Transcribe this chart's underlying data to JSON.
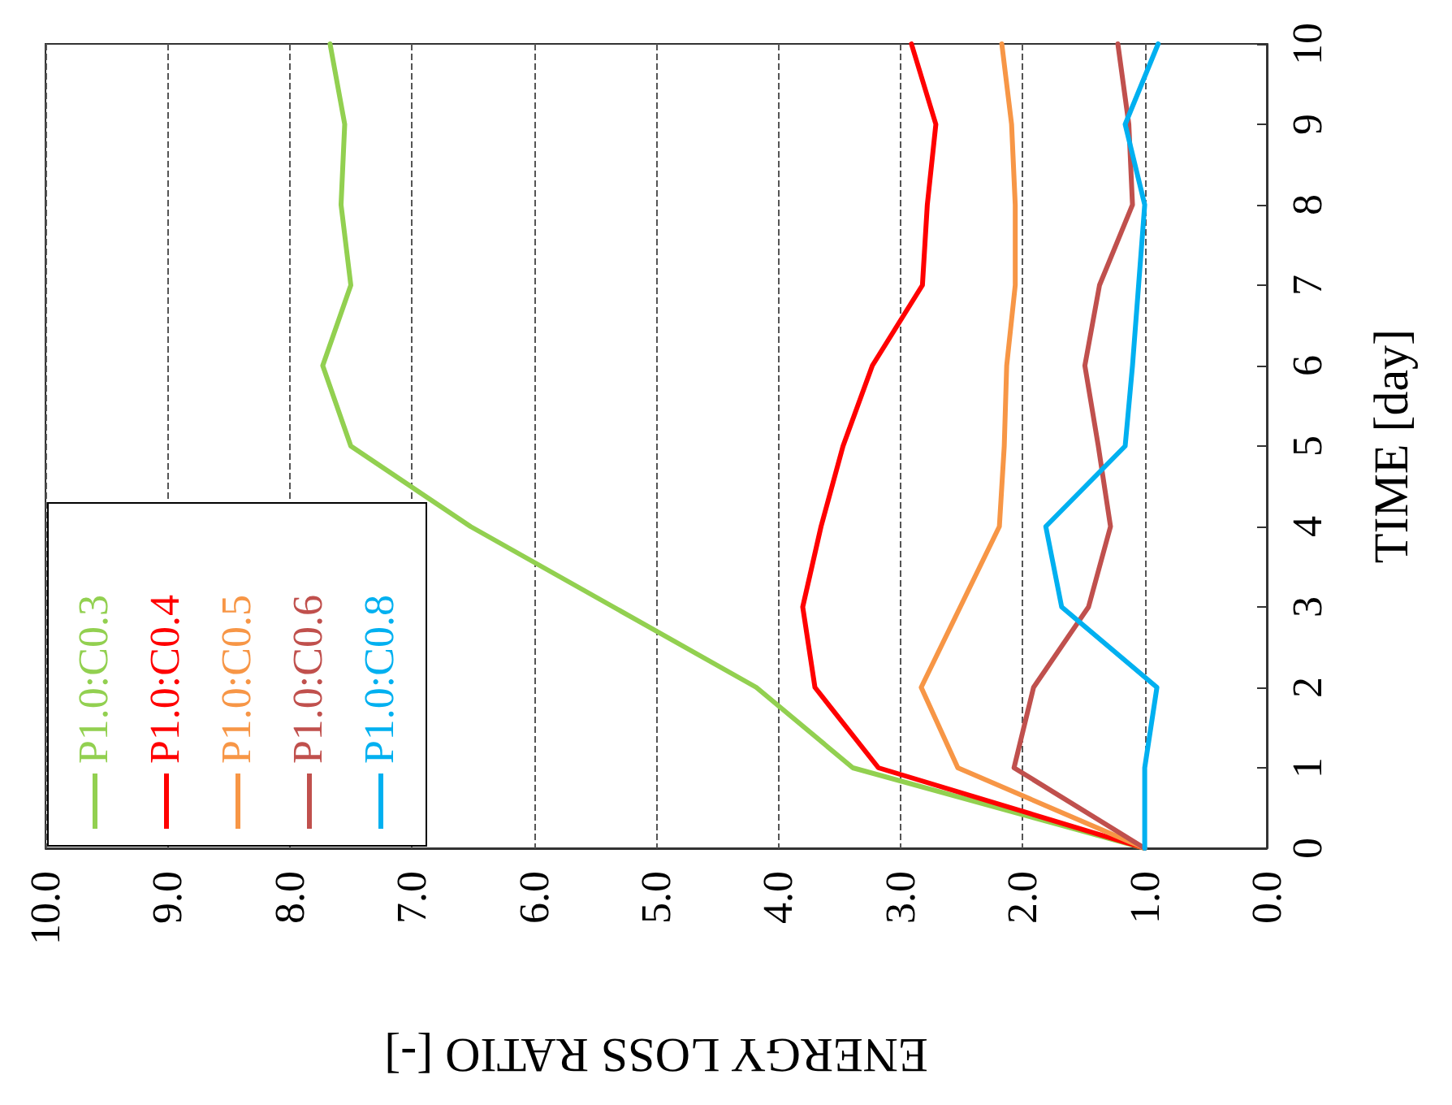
{
  "chart_data": {
    "type": "line",
    "xlabel": "ENERGY LOSS RATIO [-]",
    "ylabel": "TIME [day]",
    "xlim": [
      10,
      0
    ],
    "xticks": [
      {
        "value": 0,
        "label": "0.0"
      },
      {
        "value": 1,
        "label": "1.0"
      },
      {
        "value": 2,
        "label": "2.0"
      },
      {
        "value": 3,
        "label": "3.0"
      },
      {
        "value": 4,
        "label": "4.0"
      },
      {
        "value": 5,
        "label": "5.0"
      },
      {
        "value": 6,
        "label": "6.0"
      },
      {
        "value": 7,
        "label": "7.0"
      },
      {
        "value": 8,
        "label": "8.0"
      },
      {
        "value": 9,
        "label": "9.0"
      },
      {
        "value": 10,
        "label": "10.0"
      }
    ],
    "ylim": [
      0,
      10
    ],
    "yticks": [
      0,
      1,
      2,
      3,
      4,
      5,
      6,
      7,
      8,
      9,
      10
    ],
    "grid": "x",
    "legend": "bottom left",
    "marker": "none",
    "line_style": "solid",
    "series": [
      {
        "name": "P1.0:C0.3",
        "color": "#92d050",
        "x": [
          1.0,
          3.39,
          4.18,
          5.35,
          6.52,
          7.5,
          7.73,
          7.5,
          7.58,
          7.55,
          7.67
        ],
        "values": [
          0,
          1,
          2,
          3,
          4,
          5,
          6,
          7,
          8,
          9,
          10
        ]
      },
      {
        "name": "P1.0:C0.4",
        "color": "#ff0000",
        "x": [
          1.0,
          3.18,
          3.7,
          3.8,
          3.65,
          3.47,
          3.23,
          2.82,
          2.78,
          2.71,
          2.91
        ],
        "values": [
          0,
          1,
          2,
          3,
          4,
          5,
          6,
          7,
          8,
          9,
          10
        ]
      },
      {
        "name": "P1.0:C0.5",
        "color": "#f79646",
        "x": [
          1.0,
          2.53,
          2.83,
          2.51,
          2.19,
          2.15,
          2.13,
          2.06,
          2.06,
          2.09,
          2.17
        ],
        "values": [
          0,
          1,
          2,
          3,
          4,
          5,
          6,
          7,
          8,
          9,
          10
        ]
      },
      {
        "name": "P1.0:C0.6",
        "color": "#c0504d",
        "x": [
          1.0,
          2.07,
          1.91,
          1.46,
          1.28,
          1.38,
          1.49,
          1.37,
          1.1,
          1.13,
          1.22
        ],
        "values": [
          0,
          1,
          2,
          3,
          4,
          5,
          6,
          7,
          8,
          9,
          10
        ]
      },
      {
        "name": "P1.0:C0.8",
        "color": "#00b0f0",
        "x": [
          1.0,
          1.0,
          0.9,
          1.68,
          1.81,
          1.16,
          1.1,
          1.05,
          1.0,
          1.16,
          0.89
        ],
        "values": [
          0,
          1,
          2,
          3,
          4,
          5,
          6,
          7,
          8,
          9,
          10
        ]
      }
    ]
  }
}
